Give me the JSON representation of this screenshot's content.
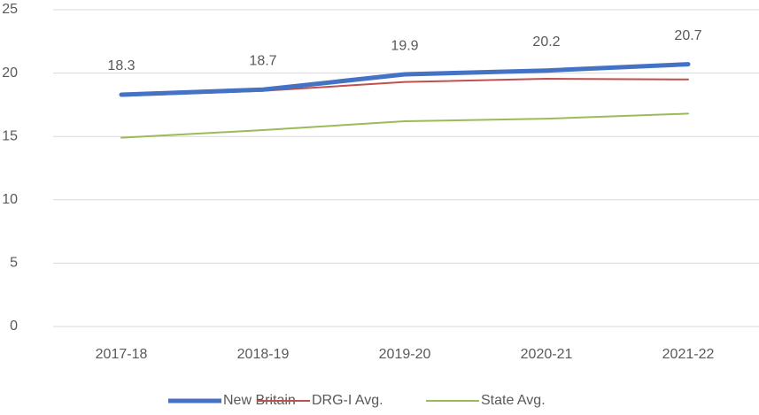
{
  "chart_data": {
    "type": "line",
    "categories": [
      "2017-18",
      "2018-19",
      "2019-20",
      "2020-21",
      "2021-22"
    ],
    "series": [
      {
        "name": "New Britain",
        "color": "#4472c4",
        "values": [
          18.3,
          18.7,
          19.9,
          20.2,
          20.7
        ]
      },
      {
        "name": "DRG-I Avg.",
        "color": "#c0504d",
        "values": [
          18.2,
          18.6,
          19.3,
          19.55,
          19.5
        ]
      },
      {
        "name": "State Avg.",
        "color": "#9bbb59",
        "values": [
          14.9,
          15.5,
          16.2,
          16.4,
          16.8
        ]
      }
    ],
    "ylim": [
      0,
      25
    ],
    "yticks": [
      0,
      5,
      10,
      15,
      20,
      25
    ],
    "grid": true,
    "legend": "bottom"
  }
}
